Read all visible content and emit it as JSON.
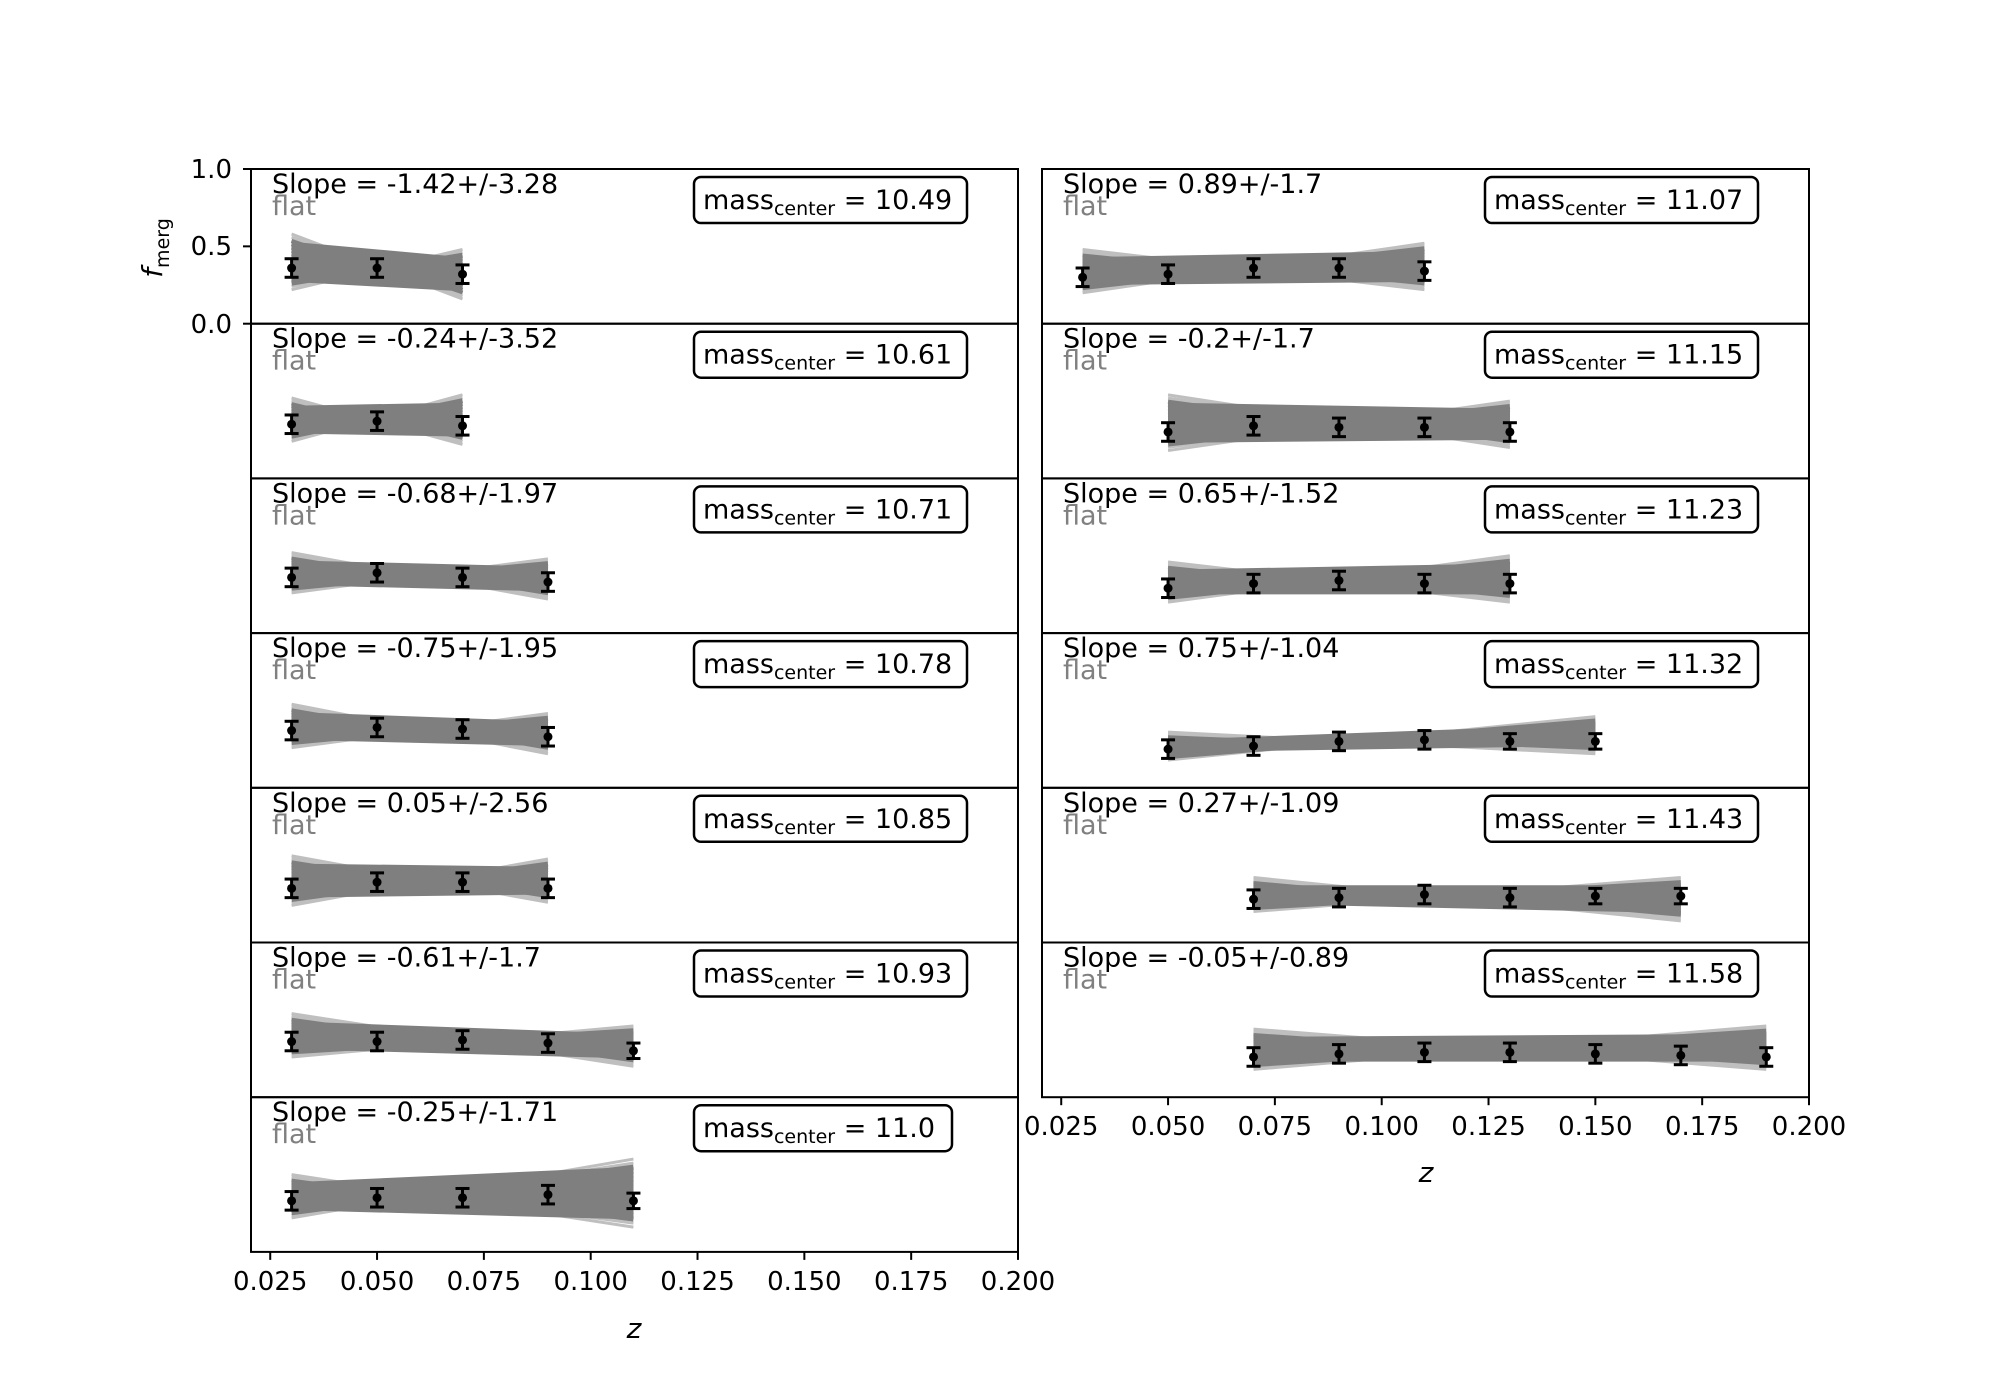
{
  "figure": {
    "ylabel_main": "f",
    "ylabel_sub": "merg",
    "xlabel": "z",
    "yticks": [
      "1.0",
      "0.5",
      "0.0"
    ],
    "xticks": [
      "0.025",
      "0.050",
      "0.075",
      "0.100",
      "0.125",
      "0.150",
      "0.175",
      "0.200"
    ],
    "flat_label": "flat",
    "mass_prefix": "mass",
    "mass_sub": "center",
    "colors": {
      "points": "#000000",
      "band": "#7f7f7f",
      "band_light": "#bfbfbf",
      "flat": "#808080"
    }
  },
  "chart_data": [
    {
      "type": "scatter",
      "column": "left",
      "slope_text": "Slope = -1.42+/-3.28",
      "mass_value": "= 10.49",
      "xlim": [
        0.0205,
        0.2
      ],
      "ylim": [
        0,
        1
      ],
      "x": [
        0.03,
        0.05,
        0.07
      ],
      "y": [
        0.36,
        0.36,
        0.32
      ],
      "yerr": [
        0.06,
        0.06,
        0.06
      ],
      "band_left": [
        0.22,
        0.58
      ],
      "band_right": [
        0.16,
        0.48
      ]
    },
    {
      "type": "scatter",
      "column": "left",
      "slope_text": "Slope = -0.24+/-3.52",
      "mass_value": "= 10.61",
      "xlim": [
        0.0205,
        0.2
      ],
      "ylim": [
        0,
        1
      ],
      "x": [
        0.03,
        0.05,
        0.07
      ],
      "y": [
        0.35,
        0.37,
        0.34
      ],
      "yerr": [
        0.06,
        0.06,
        0.06
      ],
      "band_left": [
        0.24,
        0.52
      ],
      "band_right": [
        0.22,
        0.54
      ]
    },
    {
      "type": "scatter",
      "column": "left",
      "slope_text": "Slope = -0.68+/-1.97",
      "mass_value": "= 10.71",
      "xlim": [
        0.0205,
        0.2
      ],
      "ylim": [
        0,
        1
      ],
      "x": [
        0.03,
        0.05,
        0.07,
        0.09
      ],
      "y": [
        0.36,
        0.39,
        0.36,
        0.33
      ],
      "yerr": [
        0.06,
        0.06,
        0.06,
        0.06
      ],
      "band_left": [
        0.26,
        0.52
      ],
      "band_right": [
        0.22,
        0.48
      ]
    },
    {
      "type": "scatter",
      "column": "left",
      "slope_text": "Slope = -0.75+/-1.95",
      "mass_value": "= 10.78",
      "xlim": [
        0.0205,
        0.2
      ],
      "ylim": [
        0,
        1
      ],
      "x": [
        0.03,
        0.05,
        0.07,
        0.09
      ],
      "y": [
        0.37,
        0.39,
        0.38,
        0.33
      ],
      "yerr": [
        0.06,
        0.06,
        0.06,
        0.06
      ],
      "band_left": [
        0.26,
        0.54
      ],
      "band_right": [
        0.22,
        0.48
      ]
    },
    {
      "type": "scatter",
      "column": "left",
      "slope_text": "Slope = 0.05+/-2.56",
      "mass_value": "= 10.85",
      "xlim": [
        0.0205,
        0.2
      ],
      "ylim": [
        0,
        1
      ],
      "x": [
        0.03,
        0.05,
        0.07,
        0.09
      ],
      "y": [
        0.35,
        0.39,
        0.39,
        0.35
      ],
      "yerr": [
        0.06,
        0.06,
        0.06,
        0.06
      ],
      "band_left": [
        0.24,
        0.56
      ],
      "band_right": [
        0.26,
        0.54
      ]
    },
    {
      "type": "scatter",
      "column": "left",
      "slope_text": "Slope = -0.61+/-1.7",
      "mass_value": "= 10.93",
      "xlim": [
        0.0205,
        0.2
      ],
      "ylim": [
        0,
        1
      ],
      "x": [
        0.03,
        0.05,
        0.07,
        0.09,
        0.11
      ],
      "y": [
        0.36,
        0.36,
        0.37,
        0.35,
        0.3
      ],
      "yerr": [
        0.06,
        0.06,
        0.06,
        0.06,
        0.05
      ],
      "band_left": [
        0.26,
        0.54
      ],
      "band_right": [
        0.2,
        0.46
      ]
    },
    {
      "type": "scatter",
      "column": "left",
      "slope_text": "Slope = -0.25+/-1.71",
      "mass_value": "= 11.0",
      "xlim": [
        0.0205,
        0.2
      ],
      "ylim": [
        0,
        1
      ],
      "x": [
        0.03,
        0.05,
        0.07,
        0.09,
        0.11
      ],
      "y": [
        0.33,
        0.35,
        0.35,
        0.37,
        0.33
      ],
      "yerr": [
        0.06,
        0.06,
        0.06,
        0.06,
        0.05
      ],
      "band_left": [
        0.22,
        0.5
      ],
      "band_right": [
        0.16,
        0.6
      ]
    },
    {
      "type": "scatter",
      "column": "right",
      "slope_text": "Slope = 0.89+/-1.7",
      "mass_value": "= 11.07",
      "xlim": [
        0.0205,
        0.2
      ],
      "ylim": [
        0,
        1
      ],
      "x": [
        0.03,
        0.05,
        0.07,
        0.09,
        0.11
      ],
      "y": [
        0.3,
        0.32,
        0.36,
        0.36,
        0.34
      ],
      "yerr": [
        0.06,
        0.06,
        0.06,
        0.06,
        0.06
      ],
      "band_left": [
        0.2,
        0.48
      ],
      "band_right": [
        0.22,
        0.52
      ]
    },
    {
      "type": "scatter",
      "column": "right",
      "slope_text": "Slope = -0.2+/-1.7",
      "mass_value": "= 11.15",
      "xlim": [
        0.0205,
        0.2
      ],
      "ylim": [
        0,
        1
      ],
      "x": [
        0.05,
        0.07,
        0.09,
        0.11,
        0.13
      ],
      "y": [
        0.3,
        0.34,
        0.33,
        0.33,
        0.3
      ],
      "yerr": [
        0.06,
        0.06,
        0.06,
        0.06,
        0.06
      ],
      "band_left": [
        0.18,
        0.54
      ],
      "band_right": [
        0.2,
        0.5
      ]
    },
    {
      "type": "scatter",
      "column": "right",
      "slope_text": "Slope = 0.65+/-1.52",
      "mass_value": "= 11.23",
      "xlim": [
        0.0205,
        0.2
      ],
      "ylim": [
        0,
        1
      ],
      "x": [
        0.05,
        0.07,
        0.09,
        0.11,
        0.13
      ],
      "y": [
        0.29,
        0.32,
        0.34,
        0.32,
        0.32
      ],
      "yerr": [
        0.06,
        0.06,
        0.06,
        0.06,
        0.06
      ],
      "band_left": [
        0.2,
        0.46
      ],
      "band_right": [
        0.2,
        0.5
      ]
    },
    {
      "type": "scatter",
      "column": "right",
      "slope_text": "Slope = 0.75+/-1.04",
      "mass_value": "= 11.32",
      "xlim": [
        0.0205,
        0.2
      ],
      "ylim": [
        0,
        1
      ],
      "x": [
        0.05,
        0.07,
        0.09,
        0.11,
        0.13,
        0.15
      ],
      "y": [
        0.25,
        0.27,
        0.3,
        0.31,
        0.3,
        0.3
      ],
      "yerr": [
        0.06,
        0.06,
        0.06,
        0.06,
        0.05,
        0.05
      ],
      "band_left": [
        0.18,
        0.36
      ],
      "band_right": [
        0.22,
        0.46
      ]
    },
    {
      "type": "scatter",
      "column": "right",
      "slope_text": "Slope = 0.27+/-1.09",
      "mass_value": "= 11.43",
      "xlim": [
        0.0205,
        0.2
      ],
      "ylim": [
        0,
        1
      ],
      "x": [
        0.07,
        0.09,
        0.11,
        0.13,
        0.15,
        0.17
      ],
      "y": [
        0.28,
        0.29,
        0.31,
        0.29,
        0.3,
        0.3
      ],
      "yerr": [
        0.06,
        0.06,
        0.06,
        0.06,
        0.05,
        0.05
      ],
      "band_left": [
        0.2,
        0.42
      ],
      "band_right": [
        0.14,
        0.42
      ]
    },
    {
      "type": "scatter",
      "column": "right",
      "slope_text": "Slope = -0.05+/-0.89",
      "mass_value": "= 11.58",
      "xlim": [
        0.0205,
        0.2
      ],
      "ylim": [
        0,
        1
      ],
      "x": [
        0.07,
        0.09,
        0.11,
        0.13,
        0.15,
        0.17,
        0.19
      ],
      "y": [
        0.26,
        0.28,
        0.29,
        0.29,
        0.28,
        0.27,
        0.26
      ],
      "yerr": [
        0.06,
        0.06,
        0.06,
        0.06,
        0.06,
        0.06,
        0.06
      ],
      "band_left": [
        0.18,
        0.44
      ],
      "band_right": [
        0.18,
        0.46
      ]
    }
  ]
}
